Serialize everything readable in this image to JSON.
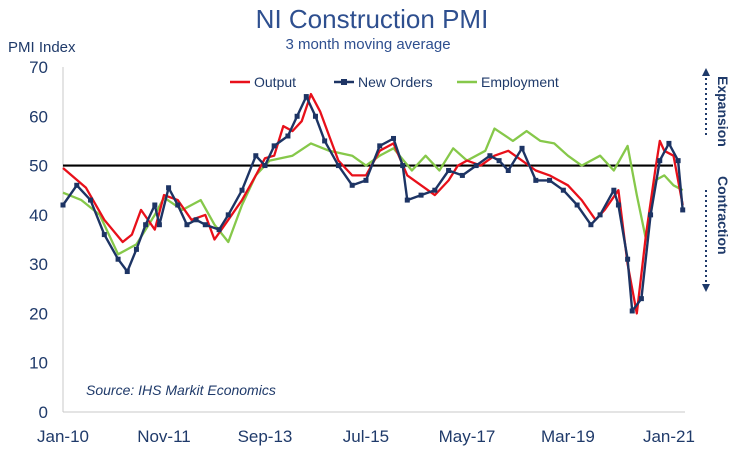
{
  "chart_data": {
    "type": "line",
    "title": "NI Construction PMI",
    "subtitle": "3 month moving average",
    "ylabel": "PMI Index",
    "source": "Source: IHS Markit Economics",
    "ylim": [
      0,
      70
    ],
    "yticks": [
      "0",
      "10",
      "20",
      "30",
      "40",
      "50",
      "60",
      "70"
    ],
    "xticks": [
      "Jan-10",
      "Nov-11",
      "Sep-13",
      "Jul-15",
      "May-17",
      "Mar-19",
      "Jan-21"
    ],
    "reference_line": 50,
    "expansion_label": "Expansion",
    "contraction_label": "Contraction",
    "legend_position": "top",
    "series": [
      {
        "name": "Output",
        "color": "#e8101a",
        "marker": "none",
        "values": [
          {
            "x": "Jan-10",
            "y": 49.5
          },
          {
            "x": "Jun-10",
            "y": 45.5
          },
          {
            "x": "Oct-10",
            "y": 39
          },
          {
            "x": "Feb-11",
            "y": 34.5
          },
          {
            "x": "Apr-11",
            "y": 36
          },
          {
            "x": "Jun-11",
            "y": 41
          },
          {
            "x": "Sep-11",
            "y": 37
          },
          {
            "x": "Nov-11",
            "y": 44
          },
          {
            "x": "Feb-12",
            "y": 43
          },
          {
            "x": "May-12",
            "y": 39
          },
          {
            "x": "Aug-12",
            "y": 40
          },
          {
            "x": "Oct-12",
            "y": 35
          },
          {
            "x": "Jan-13",
            "y": 39
          },
          {
            "x": "Apr-13",
            "y": 43
          },
          {
            "x": "Jul-13",
            "y": 48
          },
          {
            "x": "Sep-13",
            "y": 51.5
          },
          {
            "x": "Nov-13",
            "y": 52
          },
          {
            "x": "Jan-14",
            "y": 58
          },
          {
            "x": "Mar-14",
            "y": 57
          },
          {
            "x": "May-14",
            "y": 59
          },
          {
            "x": "Jul-14",
            "y": 64.5
          },
          {
            "x": "Sep-14",
            "y": 61
          },
          {
            "x": "Nov-14",
            "y": 56
          },
          {
            "x": "Jan-15",
            "y": 51
          },
          {
            "x": "Apr-15",
            "y": 48
          },
          {
            "x": "Jul-15",
            "y": 48
          },
          {
            "x": "Oct-15",
            "y": 53
          },
          {
            "x": "Jan-16",
            "y": 54.5
          },
          {
            "x": "Apr-16",
            "y": 48
          },
          {
            "x": "Jul-16",
            "y": 46
          },
          {
            "x": "Oct-16",
            "y": 44
          },
          {
            "x": "Jan-17",
            "y": 47
          },
          {
            "x": "Mar-17",
            "y": 50
          },
          {
            "x": "May-17",
            "y": 51
          },
          {
            "x": "Aug-17",
            "y": 50
          },
          {
            "x": "Nov-17",
            "y": 52
          },
          {
            "x": "Feb-18",
            "y": 53
          },
          {
            "x": "May-18",
            "y": 51
          },
          {
            "x": "Aug-18",
            "y": 49
          },
          {
            "x": "Nov-18",
            "y": 48
          },
          {
            "x": "Jan-19",
            "y": 47
          },
          {
            "x": "Mar-19",
            "y": 46
          },
          {
            "x": "Jun-19",
            "y": 43
          },
          {
            "x": "Sep-19",
            "y": 39
          },
          {
            "x": "Nov-19",
            "y": 41
          },
          {
            "x": "Feb-20",
            "y": 45
          },
          {
            "x": "Apr-20",
            "y": 30
          },
          {
            "x": "Jun-20",
            "y": 20
          },
          {
            "x": "Aug-20",
            "y": 36
          },
          {
            "x": "Oct-20",
            "y": 49
          },
          {
            "x": "Nov-20",
            "y": 55
          },
          {
            "x": "Dec-20",
            "y": 53
          },
          {
            "x": "Feb-21",
            "y": 52
          },
          {
            "x": "Apr-21",
            "y": 42
          }
        ]
      },
      {
        "name": "New Orders",
        "color": "#1d3464",
        "marker": "square",
        "values": [
          {
            "x": "Jan-10",
            "y": 42
          },
          {
            "x": "Apr-10",
            "y": 46
          },
          {
            "x": "Jul-10",
            "y": 43
          },
          {
            "x": "Oct-10",
            "y": 36
          },
          {
            "x": "Jan-11",
            "y": 31
          },
          {
            "x": "Mar-11",
            "y": 28.5
          },
          {
            "x": "May-11",
            "y": 33
          },
          {
            "x": "Jul-11",
            "y": 38
          },
          {
            "x": "Sep-11",
            "y": 42
          },
          {
            "x": "Oct-11",
            "y": 38
          },
          {
            "x": "Dec-11",
            "y": 45.5
          },
          {
            "x": "Feb-12",
            "y": 42
          },
          {
            "x": "Apr-12",
            "y": 38
          },
          {
            "x": "Jun-12",
            "y": 39
          },
          {
            "x": "Aug-12",
            "y": 38
          },
          {
            "x": "Nov-12",
            "y": 37
          },
          {
            "x": "Jan-13",
            "y": 40
          },
          {
            "x": "Apr-13",
            "y": 45
          },
          {
            "x": "Jul-13",
            "y": 52
          },
          {
            "x": "Sep-13",
            "y": 50
          },
          {
            "x": "Nov-13",
            "y": 54
          },
          {
            "x": "Feb-14",
            "y": 56
          },
          {
            "x": "Apr-14",
            "y": 60
          },
          {
            "x": "Jun-14",
            "y": 64
          },
          {
            "x": "Aug-14",
            "y": 60
          },
          {
            "x": "Oct-14",
            "y": 55
          },
          {
            "x": "Jan-15",
            "y": 50
          },
          {
            "x": "Apr-15",
            "y": 46
          },
          {
            "x": "Jul-15",
            "y": 47
          },
          {
            "x": "Oct-15",
            "y": 54
          },
          {
            "x": "Jan-16",
            "y": 55.5
          },
          {
            "x": "Mar-16",
            "y": 50
          },
          {
            "x": "Apr-16",
            "y": 43
          },
          {
            "x": "Jul-16",
            "y": 44
          },
          {
            "x": "Oct-16",
            "y": 45
          },
          {
            "x": "Jan-17",
            "y": 49
          },
          {
            "x": "Apr-17",
            "y": 48
          },
          {
            "x": "Jul-17",
            "y": 50
          },
          {
            "x": "Oct-17",
            "y": 52
          },
          {
            "x": "Dec-17",
            "y": 51
          },
          {
            "x": "Feb-18",
            "y": 49
          },
          {
            "x": "May-18",
            "y": 53.5
          },
          {
            "x": "Aug-18",
            "y": 47
          },
          {
            "x": "Nov-18",
            "y": 47
          },
          {
            "x": "Feb-19",
            "y": 45
          },
          {
            "x": "May-19",
            "y": 42
          },
          {
            "x": "Aug-19",
            "y": 38
          },
          {
            "x": "Oct-19",
            "y": 40
          },
          {
            "x": "Jan-20",
            "y": 45
          },
          {
            "x": "Feb-20",
            "y": 42
          },
          {
            "x": "Apr-20",
            "y": 31
          },
          {
            "x": "May-20",
            "y": 20.5
          },
          {
            "x": "Jul-20",
            "y": 23
          },
          {
            "x": "Sep-20",
            "y": 40
          },
          {
            "x": "Nov-20",
            "y": 51
          },
          {
            "x": "Jan-21",
            "y": 54.5
          },
          {
            "x": "Mar-21",
            "y": 51
          },
          {
            "x": "Apr-21",
            "y": 41
          }
        ]
      },
      {
        "name": "Employment",
        "color": "#86c84a",
        "marker": "none",
        "values": [
          {
            "x": "Jan-10",
            "y": 44.5
          },
          {
            "x": "May-10",
            "y": 43
          },
          {
            "x": "Sep-10",
            "y": 40
          },
          {
            "x": "Jan-11",
            "y": 32
          },
          {
            "x": "May-11",
            "y": 34
          },
          {
            "x": "Sep-11",
            "y": 40
          },
          {
            "x": "Nov-11",
            "y": 43.5
          },
          {
            "x": "Mar-12",
            "y": 41
          },
          {
            "x": "Jul-12",
            "y": 43
          },
          {
            "x": "Oct-12",
            "y": 38
          },
          {
            "x": "Jan-13",
            "y": 34.5
          },
          {
            "x": "Apr-13",
            "y": 42
          },
          {
            "x": "Jul-13",
            "y": 48
          },
          {
            "x": "Oct-13",
            "y": 51
          },
          {
            "x": "Mar-14",
            "y": 52
          },
          {
            "x": "Jul-14",
            "y": 54.5
          },
          {
            "x": "Nov-14",
            "y": 53
          },
          {
            "x": "Apr-15",
            "y": 52
          },
          {
            "x": "Jul-15",
            "y": 50
          },
          {
            "x": "Oct-15",
            "y": 52
          },
          {
            "x": "Jan-16",
            "y": 53.5
          },
          {
            "x": "May-16",
            "y": 49
          },
          {
            "x": "Aug-16",
            "y": 52
          },
          {
            "x": "Nov-16",
            "y": 49
          },
          {
            "x": "Feb-17",
            "y": 53.5
          },
          {
            "x": "May-17",
            "y": 51
          },
          {
            "x": "Sep-17",
            "y": 53
          },
          {
            "x": "Nov-17",
            "y": 57.5
          },
          {
            "x": "Mar-18",
            "y": 55
          },
          {
            "x": "Jun-18",
            "y": 57
          },
          {
            "x": "Sep-18",
            "y": 55
          },
          {
            "x": "Dec-18",
            "y": 54.5
          },
          {
            "x": "Mar-19",
            "y": 52
          },
          {
            "x": "Jun-19",
            "y": 50
          },
          {
            "x": "Oct-19",
            "y": 52
          },
          {
            "x": "Jan-20",
            "y": 49
          },
          {
            "x": "Apr-20",
            "y": 54
          },
          {
            "x": "Jun-20",
            "y": 44
          },
          {
            "x": "Aug-20",
            "y": 35
          },
          {
            "x": "Oct-20",
            "y": 47
          },
          {
            "x": "Dec-20",
            "y": 48
          },
          {
            "x": "Feb-21",
            "y": 46
          },
          {
            "x": "Apr-21",
            "y": 45
          }
        ]
      }
    ]
  }
}
